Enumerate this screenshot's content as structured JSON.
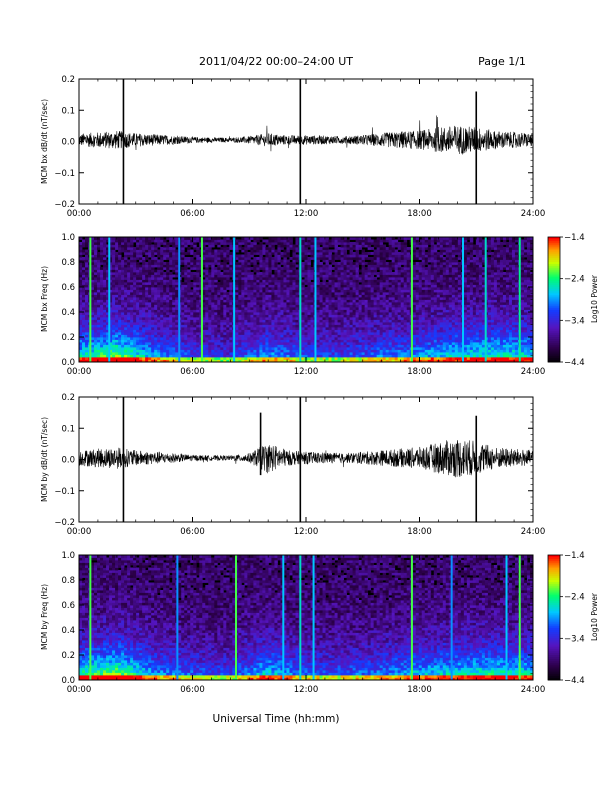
{
  "header": {
    "title": "2011/04/22  00:00–24:00 UT",
    "page": "Page 1/1"
  },
  "x_axis_title": "Universal Time (hh:mm)",
  "colors": {
    "trace": "#000000",
    "background": "#ffffff",
    "spectrogram_floor": "#000000"
  },
  "chart_data": [
    {
      "type": "line",
      "ylabel": "MCM bx dB/dt (nT/sec)",
      "xlim": [
        0,
        24
      ],
      "ylim": [
        -0.2,
        0.2
      ],
      "xticks": [
        "00:00",
        "06:00",
        "12:00",
        "18:00",
        "24:00"
      ],
      "yticks": [
        "−0.2",
        "−0.1",
        "0.0",
        "0.1",
        "0.2"
      ],
      "envelope": [
        {
          "x": 0.0,
          "a": 0.02
        },
        {
          "x": 1.0,
          "a": 0.025
        },
        {
          "x": 2.0,
          "a": 0.03
        },
        {
          "x": 3.0,
          "a": 0.022
        },
        {
          "x": 4.0,
          "a": 0.018
        },
        {
          "x": 5.0,
          "a": 0.014
        },
        {
          "x": 6.0,
          "a": 0.01
        },
        {
          "x": 7.0,
          "a": 0.008
        },
        {
          "x": 8.0,
          "a": 0.007
        },
        {
          "x": 9.0,
          "a": 0.012
        },
        {
          "x": 10.0,
          "a": 0.022
        },
        {
          "x": 11.0,
          "a": 0.015
        },
        {
          "x": 12.0,
          "a": 0.015
        },
        {
          "x": 13.0,
          "a": 0.014
        },
        {
          "x": 14.0,
          "a": 0.012
        },
        {
          "x": 15.0,
          "a": 0.016
        },
        {
          "x": 16.0,
          "a": 0.022
        },
        {
          "x": 17.0,
          "a": 0.028
        },
        {
          "x": 18.0,
          "a": 0.03
        },
        {
          "x": 19.0,
          "a": 0.04
        },
        {
          "x": 20.0,
          "a": 0.048
        },
        {
          "x": 21.0,
          "a": 0.042
        },
        {
          "x": 22.0,
          "a": 0.03
        },
        {
          "x": 23.0,
          "a": 0.025
        },
        {
          "x": 24.0,
          "a": 0.022
        }
      ],
      "spikes": [
        {
          "x": 2.35,
          "y0": -0.2,
          "y1": 0.2
        },
        {
          "x": 11.7,
          "y0": -0.2,
          "y1": 0.2
        },
        {
          "x": 21.0,
          "y0": -0.2,
          "y1": 0.16
        }
      ]
    },
    {
      "type": "heatmap",
      "ylabel": "MCM bx Freq (Hz)",
      "colorbar_label": "Log10 Power",
      "xlim": [
        0,
        24
      ],
      "ylim": [
        0,
        1.0
      ],
      "xticks": [
        "00:00",
        "06:00",
        "12:00",
        "18:00",
        "24:00"
      ],
      "yticks": [
        "0.0",
        "0.2",
        "0.4",
        "0.6",
        "0.8",
        "1.0"
      ],
      "colorbar": {
        "range": [
          -4.4,
          -1.4
        ],
        "ticks": [
          "−1.4",
          "−2.4",
          "−3.4",
          "−4.4"
        ]
      },
      "activity": [
        {
          "x": 0,
          "v": 0.55
        },
        {
          "x": 2,
          "v": 0.75
        },
        {
          "x": 4,
          "v": 0.45
        },
        {
          "x": 6,
          "v": 0.3
        },
        {
          "x": 8,
          "v": 0.25
        },
        {
          "x": 10,
          "v": 0.45
        },
        {
          "x": 12,
          "v": 0.3
        },
        {
          "x": 14,
          "v": 0.3
        },
        {
          "x": 16,
          "v": 0.38
        },
        {
          "x": 18,
          "v": 0.45
        },
        {
          "x": 20,
          "v": 0.55
        },
        {
          "x": 22,
          "v": 0.6
        },
        {
          "x": 24,
          "v": 0.55
        }
      ],
      "stripes": [
        {
          "x": 0.6,
          "v": 0.72
        },
        {
          "x": 1.6,
          "v": 0.55
        },
        {
          "x": 5.3,
          "v": 0.5
        },
        {
          "x": 6.5,
          "v": 0.72
        },
        {
          "x": 8.2,
          "v": 0.55
        },
        {
          "x": 11.7,
          "v": 0.6
        },
        {
          "x": 12.5,
          "v": 0.55
        },
        {
          "x": 17.6,
          "v": 0.72
        },
        {
          "x": 20.3,
          "v": 0.55
        },
        {
          "x": 21.5,
          "v": 0.6
        },
        {
          "x": 23.3,
          "v": 0.65
        }
      ]
    },
    {
      "type": "line",
      "ylabel": "MCM by dB/dt (nT/sec)",
      "xlim": [
        0,
        24
      ],
      "ylim": [
        -0.2,
        0.2
      ],
      "xticks": [
        "00:00",
        "06:00",
        "12:00",
        "18:00",
        "24:00"
      ],
      "yticks": [
        "−0.2",
        "−0.1",
        "0.0",
        "0.1",
        "0.2"
      ],
      "envelope": [
        {
          "x": 0.0,
          "a": 0.025
        },
        {
          "x": 1.0,
          "a": 0.03
        },
        {
          "x": 2.0,
          "a": 0.035
        },
        {
          "x": 3.0,
          "a": 0.025
        },
        {
          "x": 4.0,
          "a": 0.02
        },
        {
          "x": 5.0,
          "a": 0.015
        },
        {
          "x": 6.0,
          "a": 0.01
        },
        {
          "x": 7.0,
          "a": 0.008
        },
        {
          "x": 8.0,
          "a": 0.008
        },
        {
          "x": 9.0,
          "a": 0.015
        },
        {
          "x": 10.0,
          "a": 0.05
        },
        {
          "x": 11.0,
          "a": 0.025
        },
        {
          "x": 12.0,
          "a": 0.02
        },
        {
          "x": 13.0,
          "a": 0.018
        },
        {
          "x": 14.0,
          "a": 0.015
        },
        {
          "x": 15.0,
          "a": 0.02
        },
        {
          "x": 16.0,
          "a": 0.025
        },
        {
          "x": 17.0,
          "a": 0.03
        },
        {
          "x": 18.0,
          "a": 0.035
        },
        {
          "x": 19.0,
          "a": 0.05
        },
        {
          "x": 20.0,
          "a": 0.065
        },
        {
          "x": 21.0,
          "a": 0.055
        },
        {
          "x": 22.0,
          "a": 0.035
        },
        {
          "x": 23.0,
          "a": 0.03
        },
        {
          "x": 24.0,
          "a": 0.025
        }
      ],
      "spikes": [
        {
          "x": 2.35,
          "y0": -0.2,
          "y1": 0.2
        },
        {
          "x": 9.6,
          "y0": -0.05,
          "y1": 0.15
        },
        {
          "x": 11.7,
          "y0": -0.2,
          "y1": 0.2
        },
        {
          "x": 21.0,
          "y0": -0.2,
          "y1": 0.14
        }
      ]
    },
    {
      "type": "heatmap",
      "ylabel": "MCM by Freq (Hz)",
      "colorbar_label": "Log10 Power",
      "xlim": [
        0,
        24
      ],
      "ylim": [
        0,
        1.0
      ],
      "xticks": [
        "00:00",
        "06:00",
        "12:00",
        "18:00",
        "24:00"
      ],
      "yticks": [
        "0.0",
        "0.2",
        "0.4",
        "0.6",
        "0.8",
        "1.0"
      ],
      "colorbar": {
        "range": [
          -4.4,
          -1.4
        ],
        "ticks": [
          "−1.4",
          "−2.4",
          "−3.4",
          "−4.4"
        ]
      },
      "activity": [
        {
          "x": 0,
          "v": 0.6
        },
        {
          "x": 2,
          "v": 0.75
        },
        {
          "x": 4,
          "v": 0.45
        },
        {
          "x": 6,
          "v": 0.35
        },
        {
          "x": 8,
          "v": 0.3
        },
        {
          "x": 10,
          "v": 0.55
        },
        {
          "x": 12,
          "v": 0.35
        },
        {
          "x": 14,
          "v": 0.35
        },
        {
          "x": 16,
          "v": 0.4
        },
        {
          "x": 18,
          "v": 0.5
        },
        {
          "x": 20,
          "v": 0.55
        },
        {
          "x": 22,
          "v": 0.6
        },
        {
          "x": 24,
          "v": 0.55
        }
      ],
      "stripes": [
        {
          "x": 0.6,
          "v": 0.72
        },
        {
          "x": 5.2,
          "v": 0.5
        },
        {
          "x": 8.3,
          "v": 0.72
        },
        {
          "x": 10.8,
          "v": 0.55
        },
        {
          "x": 11.7,
          "v": 0.6
        },
        {
          "x": 12.4,
          "v": 0.55
        },
        {
          "x": 17.6,
          "v": 0.72
        },
        {
          "x": 19.7,
          "v": 0.5
        },
        {
          "x": 22.6,
          "v": 0.55
        },
        {
          "x": 23.3,
          "v": 0.72
        }
      ]
    }
  ]
}
